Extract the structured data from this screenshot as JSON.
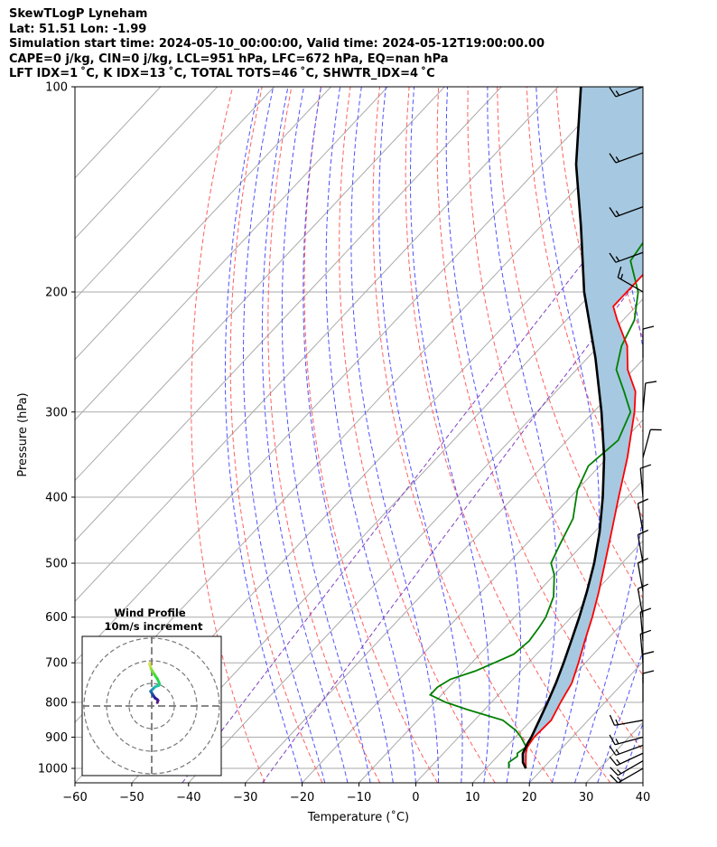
{
  "header": {
    "line1": "SkewTLogP Lyneham",
    "line2": "Lat: 51.51   Lon: -1.99",
    "line3": "Simulation start time: 2024-05-10_00:00:00, Valid time: 2024-05-12T19:00:00.00",
    "line4": "CAPE=0 j/kg, CIN=0 j/kg, LCL=951 hPa, LFC=672 hPa, EQ=nan hPa",
    "line5": "LFT IDX=1 ˚C, K IDX=13 ˚C, TOTAL TOTS=46 ˚C, SHWTR_IDX=4 ˚C"
  },
  "hodograph": {
    "title": "Wind Profile",
    "subtitle": "10m/s increment"
  },
  "colors": {
    "temperature": "#ff0000",
    "dewpoint": "#008000",
    "parcel": "#000000",
    "cape_fill": "#a6c8e0",
    "dry_adiabat": "#ff6060",
    "moist_adiabat": "#5050ff",
    "mixing_ratio": "#8040c0",
    "isotherm": "#aaaaaa"
  },
  "chart_data": {
    "type": "line",
    "title": "",
    "xlabel": "Temperature (˚C)",
    "ylabel": "Pressure (hPa)",
    "xlim": [
      -60,
      40
    ],
    "ylim": [
      1050,
      100
    ],
    "yscale": "log",
    "grid": true,
    "x_ticks": [
      "−60",
      "−50",
      "−40",
      "−30",
      "−20",
      "−10",
      "0",
      "10",
      "20",
      "30",
      "40"
    ],
    "y_ticks": [
      "100",
      "200",
      "300",
      "400",
      "500",
      "600",
      "700",
      "800",
      "900",
      "1000"
    ],
    "series": [
      {
        "key": "temperature",
        "pressure": [
          1000,
          980,
          950,
          930,
          900,
          850,
          800,
          750,
          700,
          650,
          600,
          550,
          500,
          450,
          400,
          350,
          300,
          280,
          260,
          240,
          220,
          210,
          200,
          180,
          160,
          140,
          130,
          120,
          110,
          100
        ],
        "values": [
          17,
          16,
          14.5,
          13.7,
          13.3,
          13.5,
          12.2,
          11,
          8.8,
          6.3,
          3.7,
          0.6,
          -3.0,
          -7.0,
          -11.5,
          -16.5,
          -22.8,
          -26,
          -31,
          -35,
          -41,
          -44,
          -44,
          -44,
          -48,
          -52,
          -53,
          -56,
          -58,
          -61
        ]
      },
      {
        "key": "dewpoint",
        "pressure": [
          1000,
          980,
          960,
          950,
          930,
          900,
          880,
          850,
          820,
          800,
          780,
          760,
          740,
          720,
          700,
          680,
          650,
          620,
          600,
          560,
          520,
          500,
          470,
          430,
          390,
          360,
          330,
          300,
          280,
          260,
          240,
          220,
          200,
          180,
          160,
          140,
          120,
          100
        ],
        "values": [
          14,
          13,
          13.5,
          13,
          13.5,
          11,
          9,
          5,
          -3,
          -8,
          -12,
          -12,
          -11,
          -8,
          -6,
          -4,
          -3.5,
          -4,
          -4.5,
          -6.5,
          -10,
          -12.5,
          -14,
          -16,
          -20,
          -22,
          -21,
          -23.5,
          -28,
          -33,
          -36,
          -38,
          -42,
          -48.5,
          -50,
          -49,
          -50,
          -51
        ]
      },
      {
        "key": "parcel",
        "pressure": [
          1000,
          980,
          951,
          920,
          900,
          850,
          800,
          750,
          700,
          650,
          600,
          550,
          500,
          450,
          400,
          350,
          300,
          250,
          200,
          160,
          130,
          100
        ],
        "values": [
          17,
          15.5,
          14,
          13.2,
          12.8,
          11.4,
          9.9,
          8.2,
          6.2,
          3.9,
          1.4,
          -1.5,
          -4.9,
          -9.1,
          -14.3,
          -20.6,
          -28.6,
          -38.6,
          -51.5,
          -63,
          -74,
          -86
        ]
      }
    ],
    "wind_barbs": {
      "pressure": [
        1000,
        975,
        950,
        925,
        900,
        850,
        800,
        750,
        700,
        650,
        600,
        550,
        500,
        450,
        400,
        350,
        300,
        250,
        200,
        175,
        150,
        125,
        100
      ],
      "speed_kt": [
        15,
        15,
        15,
        15,
        15,
        15,
        10,
        10,
        10,
        10,
        10,
        10,
        10,
        10,
        10,
        10,
        10,
        10,
        15,
        15,
        15,
        15,
        15
      ],
      "direction_deg": [
        240,
        240,
        245,
        250,
        255,
        260,
        360,
        360,
        355,
        355,
        350,
        350,
        350,
        350,
        355,
        15,
        5,
        360,
        300,
        250,
        250,
        250,
        250
      ]
    },
    "hodograph": {
      "u": [
        2.5,
        2.8,
        2.3,
        1.5,
        0.8,
        0.2,
        -0.5,
        0.5,
        1.5,
        3.0,
        3.5,
        3.2,
        2.5,
        1.5,
        0.5,
        -0.3,
        -0.5,
        -1.0,
        -0.8
      ],
      "v": [
        1.5,
        2.5,
        3.0,
        3.5,
        4.5,
        5.5,
        6.5,
        7.5,
        8.5,
        9.0,
        9.5,
        10.5,
        12.0,
        13.5,
        15.0,
        16.5,
        17.5,
        18.5,
        19.0
      ]
    }
  }
}
